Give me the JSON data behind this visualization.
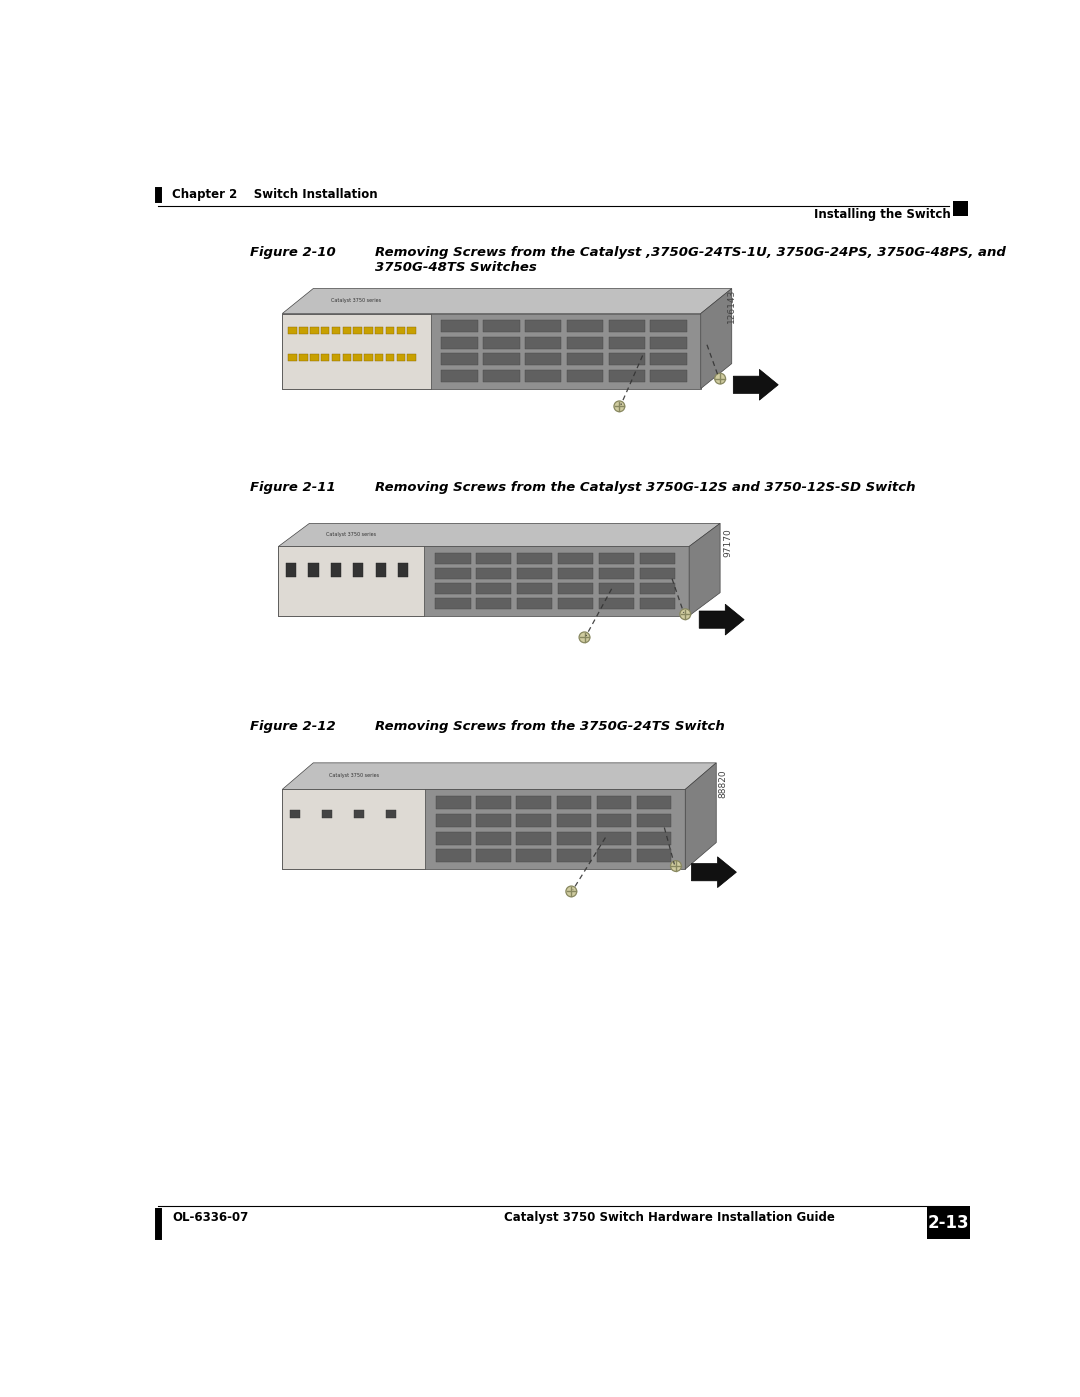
{
  "page_bg": "#ffffff",
  "header_left": "Chapter 2    Switch Installation",
  "header_right": "Installing the Switch",
  "footer_left": "OL-6336-07",
  "footer_center": "Catalyst 3750 Switch Hardware Installation Guide",
  "footer_page": "2-13",
  "fig1_label": "Figure 2-10",
  "fig1_title": "Removing Screws from the Catalyst ,3750G-24TS-1U, 3750G-24PS, 3750G-48PS, and\n3750G-48TS Switches",
  "fig1_code": "126143",
  "fig2_label": "Figure 2-11",
  "fig2_title": "Removing Screws from the Catalyst 3750G-12S and 3750-12S-SD Switch",
  "fig2_code": "97170",
  "fig3_label": "Figure 2-12",
  "fig3_title": "Removing Screws from the 3750G-24TS Switch",
  "fig3_code": "88820",
  "label_fontsize": 9.5,
  "title_fontsize": 9.5,
  "header_fontsize": 8.5,
  "footer_fontsize": 8.5,
  "code_fontsize": 6.5
}
